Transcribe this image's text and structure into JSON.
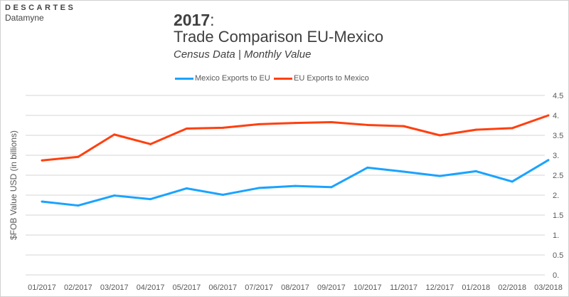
{
  "logo": {
    "line1": "DESCARTES",
    "line2": "Datamyne"
  },
  "chart_data": {
    "type": "line",
    "title_bold": "2017",
    "title_colon": ":",
    "subtitle": "Trade Comparison EU-Mexico",
    "subtitle2": "Census Data | Monthly Value",
    "ylabel": "$FOB Value USD (in billions)",
    "xlabel": "",
    "ylim": [
      0,
      4.5
    ],
    "yticks": [
      "4.5",
      "4.",
      "3.5",
      "3.",
      "2.5",
      "2.",
      "1.5",
      "1.",
      "0.5",
      "0."
    ],
    "ytick_values": [
      4.5,
      4,
      3.5,
      3,
      2.5,
      2,
      1.5,
      1,
      0.5,
      0
    ],
    "y_axis_side": "right",
    "grid": true,
    "legend": "top",
    "categories": [
      "01/2017",
      "02/2017",
      "03/2017",
      "04/2017",
      "05/2017",
      "06/2017",
      "07/2017",
      "08/2017",
      "09/2017",
      "10/2017",
      "11/2017",
      "12/2017",
      "01/2018",
      "02/2018",
      "03/2018"
    ],
    "series": [
      {
        "name": "Mexico Exports to EU",
        "color": "#1aa3ff",
        "values": [
          1.84,
          1.74,
          1.99,
          1.9,
          2.17,
          2.01,
          2.18,
          2.23,
          2.2,
          2.69,
          2.59,
          2.48,
          2.6,
          2.34,
          2.88
        ]
      },
      {
        "name": "EU Exports to Mexico",
        "color": "#ff4010",
        "values": [
          2.87,
          2.96,
          3.52,
          3.28,
          3.67,
          3.69,
          3.78,
          3.81,
          3.83,
          3.76,
          3.73,
          3.5,
          3.64,
          3.68,
          4.0
        ]
      }
    ]
  }
}
